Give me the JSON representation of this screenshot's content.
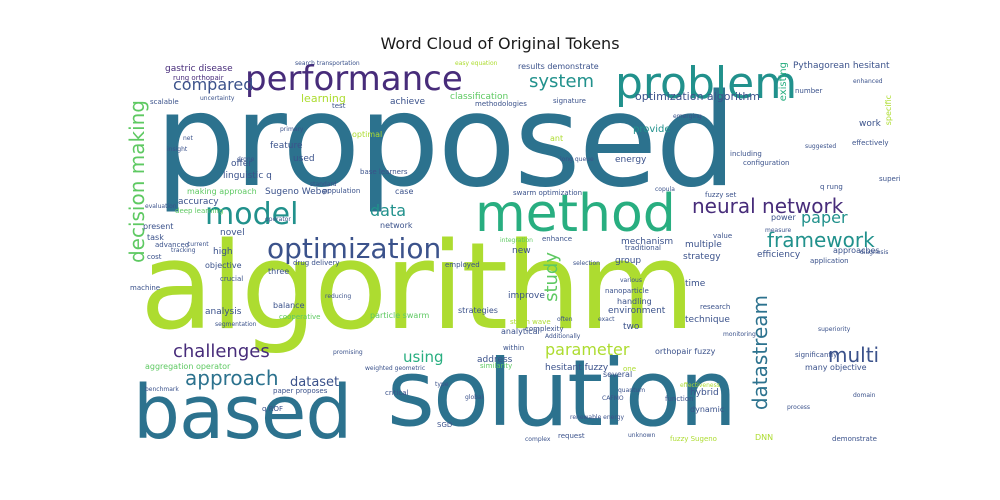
{
  "title": "Word Cloud of Original Tokens",
  "palette": {
    "purple": "#472c7a",
    "indigo": "#3b528b",
    "blue": "#2c728e",
    "teal": "#21918c",
    "green": "#28ae80",
    "lime": "#5ec962",
    "yellow_green": "#addc30"
  },
  "words": [
    {
      "text": "proposed"
    },
    {
      "text": "algorithm"
    },
    {
      "text": "solution"
    },
    {
      "text": "based"
    },
    {
      "text": "method"
    },
    {
      "text": "problem"
    },
    {
      "text": "performance"
    },
    {
      "text": "model"
    },
    {
      "text": "optimization"
    },
    {
      "text": "neural network"
    },
    {
      "text": "decision making"
    },
    {
      "text": "framework"
    },
    {
      "text": "challenges"
    },
    {
      "text": "approach"
    },
    {
      "text": "multi"
    },
    {
      "text": "datastream"
    },
    {
      "text": "parameter"
    },
    {
      "text": "study"
    },
    {
      "text": "system"
    },
    {
      "text": "compared"
    },
    {
      "text": "paper"
    },
    {
      "text": "data"
    },
    {
      "text": "using"
    },
    {
      "text": "dataset"
    },
    {
      "text": "optimization algorithm"
    },
    {
      "text": "Pythagorean hesitant"
    },
    {
      "text": "gastric disease"
    },
    {
      "text": "rung orthopair"
    },
    {
      "text": "Sugeno Weber"
    },
    {
      "text": "accuracy"
    },
    {
      "text": "novel"
    },
    {
      "text": "high"
    },
    {
      "text": "present"
    },
    {
      "text": "objective"
    },
    {
      "text": "learning"
    },
    {
      "text": "classification"
    },
    {
      "text": "results demonstrate"
    },
    {
      "text": "provide"
    },
    {
      "text": "feature"
    },
    {
      "text": "linguistic q"
    },
    {
      "text": "offer"
    },
    {
      "text": "used"
    },
    {
      "text": "making approach"
    },
    {
      "text": "deep learning"
    },
    {
      "text": "mechanism"
    },
    {
      "text": "efficiency"
    },
    {
      "text": "approaches"
    },
    {
      "text": "strategy"
    },
    {
      "text": "multiple"
    },
    {
      "text": "traditional"
    },
    {
      "text": "group"
    },
    {
      "text": "new"
    },
    {
      "text": "time"
    },
    {
      "text": "improve"
    },
    {
      "text": "environment"
    },
    {
      "text": "two"
    },
    {
      "text": "technique"
    },
    {
      "text": "analysis"
    },
    {
      "text": "balance"
    },
    {
      "text": "three"
    },
    {
      "text": "crucial"
    },
    {
      "text": "address"
    },
    {
      "text": "analytical"
    },
    {
      "text": "strategies"
    },
    {
      "text": "hesitant fuzzy"
    },
    {
      "text": "orthopair fuzzy"
    },
    {
      "text": "aggregation operator"
    },
    {
      "text": "many objective"
    },
    {
      "text": "hybrid"
    },
    {
      "text": "dynamic"
    },
    {
      "text": "function"
    },
    {
      "text": "case"
    },
    {
      "text": "network"
    },
    {
      "text": "achieve"
    },
    {
      "text": "energy"
    },
    {
      "text": "including"
    },
    {
      "text": "configuration"
    },
    {
      "text": "number"
    },
    {
      "text": "signature"
    },
    {
      "text": "existing"
    },
    {
      "text": "work"
    },
    {
      "text": "effectively"
    },
    {
      "text": "superior"
    },
    {
      "text": "q rung"
    },
    {
      "text": "fuzzy set"
    },
    {
      "text": "swarm optimization"
    },
    {
      "text": "power"
    },
    {
      "text": "value"
    },
    {
      "text": "application"
    },
    {
      "text": "cost"
    },
    {
      "text": "task"
    },
    {
      "text": "advanced"
    },
    {
      "text": "machine"
    },
    {
      "text": "scalable"
    },
    {
      "text": "drug delivery"
    },
    {
      "text": "employed"
    },
    {
      "text": "base learners"
    },
    {
      "text": "population"
    },
    {
      "text": "uncertainty"
    },
    {
      "text": "methodologies"
    },
    {
      "text": "test"
    },
    {
      "text": "primary"
    },
    {
      "text": "optimal"
    },
    {
      "text": "ant"
    },
    {
      "text": "complexity"
    },
    {
      "text": "within"
    },
    {
      "text": "research"
    },
    {
      "text": "handling"
    },
    {
      "text": "nanoparticle"
    },
    {
      "text": "several"
    },
    {
      "text": "one"
    },
    {
      "text": "similarity"
    },
    {
      "text": "weighted geometric"
    },
    {
      "text": "paper proposes"
    },
    {
      "text": "critical"
    },
    {
      "text": "request"
    },
    {
      "text": "complex"
    },
    {
      "text": "DNN"
    },
    {
      "text": "demonstrate"
    },
    {
      "text": "fuzzy Sugeno"
    },
    {
      "text": "process"
    },
    {
      "text": "domain"
    },
    {
      "text": "quantum"
    },
    {
      "text": "significantly"
    },
    {
      "text": "diagnosis"
    },
    {
      "text": "enhance"
    },
    {
      "text": "integration"
    },
    {
      "text": "particle swarm"
    },
    {
      "text": "promising"
    },
    {
      "text": "reducing"
    },
    {
      "text": "cooperative"
    },
    {
      "text": "segmentation"
    },
    {
      "text": "benchmark"
    },
    {
      "text": "evaluation"
    },
    {
      "text": "current"
    },
    {
      "text": "tracking"
    },
    {
      "text": "operator"
    },
    {
      "text": "selection"
    },
    {
      "text": "various"
    },
    {
      "text": "copula"
    },
    {
      "text": "superiority"
    },
    {
      "text": "emerging"
    },
    {
      "text": "drone"
    },
    {
      "text": "insight"
    },
    {
      "text": "net"
    },
    {
      "text": "search transportation"
    },
    {
      "text": "easy equation"
    },
    {
      "text": "standard"
    },
    {
      "text": "long queue"
    },
    {
      "text": "strain wave"
    },
    {
      "text": "Additionally"
    },
    {
      "text": "often"
    },
    {
      "text": "enhanced"
    },
    {
      "text": "specific"
    },
    {
      "text": "suggested"
    },
    {
      "text": "measure"
    },
    {
      "text": "exact"
    },
    {
      "text": "global"
    },
    {
      "text": "SGD"
    },
    {
      "text": "q ROF"
    },
    {
      "text": "type"
    },
    {
      "text": "CAFMO"
    },
    {
      "text": "unknown"
    },
    {
      "text": "renewable energy"
    },
    {
      "text": "effectiveness"
    },
    {
      "text": "monitoring"
    }
  ]
}
